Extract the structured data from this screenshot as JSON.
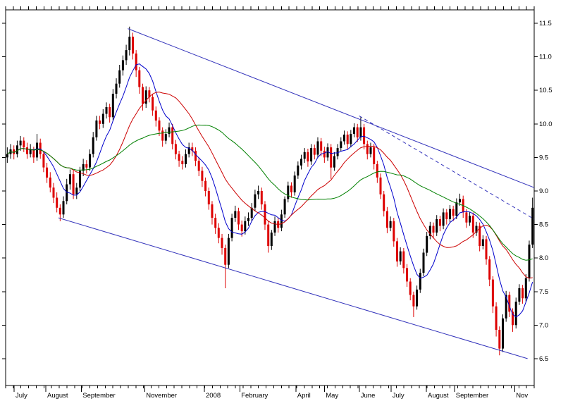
{
  "chart_data": {
    "type": "candlestick",
    "title": "",
    "ylim": [
      6.1,
      11.7
    ],
    "x_range": [
      0,
      160
    ],
    "grid": false,
    "legend": "none",
    "colors": {
      "up": "#000000",
      "down": "#dd0000",
      "frame": "#000000",
      "background": "#ffffff",
      "trend": "#3333bb"
    },
    "price_axis": {
      "side": "right",
      "ticks": [
        11.5,
        11.0,
        10.5,
        10.0,
        9.5,
        9.0,
        8.5,
        8.0,
        7.5,
        7.0,
        6.5
      ],
      "decimals": 1
    },
    "time_axis": {
      "minor_ticks": 69,
      "labels": [
        {
          "text": "July",
          "pos": 0.016
        },
        {
          "text": "August",
          "pos": 0.076
        },
        {
          "text": "September",
          "pos": 0.143
        },
        {
          "text": "November",
          "pos": 0.263
        },
        {
          "text": "2008",
          "pos": 0.376
        },
        {
          "text": "February",
          "pos": 0.443
        },
        {
          "text": "April",
          "pos": 0.549
        },
        {
          "text": "May",
          "pos": 0.603
        },
        {
          "text": "June",
          "pos": 0.669
        },
        {
          "text": "July",
          "pos": 0.729
        },
        {
          "text": "August",
          "pos": 0.796
        },
        {
          "text": "September",
          "pos": 0.849
        },
        {
          "text": "Nov",
          "pos": 0.963
        }
      ]
    },
    "moving_averages": [
      {
        "name": "fast-blue",
        "period": 8,
        "color": "#0000cc"
      },
      {
        "name": "medium-red",
        "period": 20,
        "color": "#cc0000"
      },
      {
        "name": "slow-green",
        "period": 40,
        "color": "#008000"
      }
    ],
    "trend_lines": [
      {
        "name": "upper-channel",
        "x1": 37,
        "y1": 11.42,
        "x2": 160,
        "y2": 9.05,
        "color": "#3333bb",
        "dashed": false
      },
      {
        "name": "lower-channel",
        "x1": 16,
        "y1": 8.6,
        "x2": 158,
        "y2": 6.5,
        "color": "#3333bb",
        "dashed": false
      },
      {
        "name": "inner-resistance",
        "x1": 107,
        "y1": 10.12,
        "x2": 160,
        "y2": 8.58,
        "color": "#3333bb",
        "dashed": true
      }
    ],
    "candles": [
      [
        9.5,
        9.65,
        9.42,
        9.55
      ],
      [
        9.55,
        9.7,
        9.48,
        9.62
      ],
      [
        9.62,
        9.68,
        9.47,
        9.55
      ],
      [
        9.55,
        9.75,
        9.5,
        9.68
      ],
      [
        9.68,
        9.82,
        9.6,
        9.75
      ],
      [
        9.75,
        9.8,
        9.58,
        9.65
      ],
      [
        9.65,
        9.72,
        9.48,
        9.55
      ],
      [
        9.55,
        9.7,
        9.5,
        9.62
      ],
      [
        9.62,
        9.66,
        9.42,
        9.5
      ],
      [
        9.5,
        9.85,
        9.45,
        9.72
      ],
      [
        9.72,
        9.78,
        9.48,
        9.55
      ],
      [
        9.55,
        9.6,
        9.28,
        9.35
      ],
      [
        9.35,
        9.42,
        9.12,
        9.2
      ],
      [
        9.2,
        9.28,
        8.98,
        9.05
      ],
      [
        9.05,
        9.12,
        8.82,
        8.9
      ],
      [
        8.9,
        8.98,
        8.68,
        8.75
      ],
      [
        8.75,
        8.8,
        8.55,
        8.65
      ],
      [
        8.65,
        8.92,
        8.6,
        8.85
      ],
      [
        8.85,
        9.18,
        8.8,
        9.1
      ],
      [
        9.1,
        9.32,
        9.02,
        9.25
      ],
      [
        9.25,
        9.3,
        8.88,
        8.95
      ],
      [
        8.95,
        9.12,
        8.88,
        9.05
      ],
      [
        9.05,
        9.36,
        9.0,
        9.3
      ],
      [
        9.3,
        9.48,
        9.22,
        9.4
      ],
      [
        9.4,
        9.46,
        9.26,
        9.35
      ],
      [
        9.35,
        9.62,
        9.3,
        9.55
      ],
      [
        9.55,
        9.88,
        9.5,
        9.8
      ],
      [
        9.8,
        10.12,
        9.75,
        10.05
      ],
      [
        10.05,
        10.12,
        9.92,
        10.0
      ],
      [
        10.0,
        10.22,
        9.94,
        10.15
      ],
      [
        10.15,
        10.32,
        10.08,
        10.25
      ],
      [
        10.25,
        10.3,
        10.02,
        10.1
      ],
      [
        10.1,
        10.52,
        10.05,
        10.45
      ],
      [
        10.45,
        10.68,
        10.38,
        10.6
      ],
      [
        10.6,
        10.88,
        10.54,
        10.8
      ],
      [
        10.8,
        11.02,
        10.72,
        10.95
      ],
      [
        10.95,
        11.18,
        10.88,
        11.1
      ],
      [
        11.1,
        11.45,
        11.02,
        11.3
      ],
      [
        11.3,
        11.36,
        10.96,
        11.05
      ],
      [
        11.05,
        11.1,
        10.7,
        10.8
      ],
      [
        10.8,
        10.85,
        10.45,
        10.55
      ],
      [
        10.55,
        10.6,
        10.2,
        10.3
      ],
      [
        10.3,
        10.56,
        10.24,
        10.5
      ],
      [
        10.5,
        10.55,
        10.32,
        10.4
      ],
      [
        10.4,
        10.45,
        10.12,
        10.2
      ],
      [
        10.2,
        10.26,
        9.96,
        10.05
      ],
      [
        10.05,
        10.1,
        9.82,
        9.9
      ],
      [
        9.9,
        9.95,
        9.66,
        9.75
      ],
      [
        9.75,
        9.92,
        9.7,
        9.85
      ],
      [
        9.85,
        10.02,
        9.8,
        9.95
      ],
      [
        9.95,
        10.0,
        9.62,
        9.7
      ],
      [
        9.7,
        9.76,
        9.47,
        9.55
      ],
      [
        9.55,
        9.6,
        9.36,
        9.45
      ],
      [
        9.45,
        9.52,
        9.32,
        9.4
      ],
      [
        9.4,
        9.62,
        9.35,
        9.55
      ],
      [
        9.55,
        9.72,
        9.5,
        9.65
      ],
      [
        9.65,
        9.72,
        9.52,
        9.6
      ],
      [
        9.6,
        9.65,
        9.37,
        9.45
      ],
      [
        9.45,
        9.5,
        9.22,
        9.3
      ],
      [
        9.3,
        9.36,
        9.06,
        9.15
      ],
      [
        9.15,
        9.2,
        8.92,
        9.0
      ],
      [
        9.0,
        9.05,
        8.72,
        8.8
      ],
      [
        8.8,
        8.85,
        8.5,
        8.6
      ],
      [
        8.6,
        8.66,
        8.36,
        8.45
      ],
      [
        8.45,
        8.52,
        8.22,
        8.3
      ],
      [
        8.3,
        8.36,
        8.05,
        8.15
      ],
      [
        8.15,
        8.2,
        7.55,
        7.9
      ],
      [
        7.9,
        8.36,
        7.85,
        8.3
      ],
      [
        8.3,
        8.66,
        8.25,
        8.6
      ],
      [
        8.6,
        8.78,
        8.54,
        8.7
      ],
      [
        8.7,
        8.75,
        8.42,
        8.5
      ],
      [
        8.5,
        8.56,
        8.32,
        8.4
      ],
      [
        8.4,
        8.62,
        8.35,
        8.55
      ],
      [
        8.55,
        8.68,
        8.48,
        8.6
      ],
      [
        8.6,
        8.82,
        8.55,
        8.75
      ],
      [
        8.75,
        9.02,
        8.7,
        8.95
      ],
      [
        8.95,
        9.08,
        8.88,
        9.0
      ],
      [
        9.0,
        9.05,
        8.72,
        8.8
      ],
      [
        8.8,
        8.85,
        8.42,
        8.5
      ],
      [
        8.5,
        8.55,
        8.08,
        8.18
      ],
      [
        8.18,
        8.42,
        8.12,
        8.38
      ],
      [
        8.38,
        8.62,
        8.33,
        8.55
      ],
      [
        8.55,
        8.6,
        8.38,
        8.45
      ],
      [
        8.45,
        8.72,
        8.4,
        8.65
      ],
      [
        8.65,
        8.92,
        8.6,
        8.88
      ],
      [
        8.88,
        9.14,
        8.83,
        9.08
      ],
      [
        9.08,
        9.13,
        8.9,
        8.98
      ],
      [
        8.98,
        9.29,
        8.93,
        9.23
      ],
      [
        9.23,
        9.44,
        9.18,
        9.38
      ],
      [
        9.38,
        9.54,
        9.32,
        9.48
      ],
      [
        9.48,
        9.64,
        9.42,
        9.58
      ],
      [
        9.58,
        9.63,
        9.36,
        9.44
      ],
      [
        9.44,
        9.7,
        9.39,
        9.64
      ],
      [
        9.64,
        9.69,
        9.47,
        9.54
      ],
      [
        9.54,
        9.8,
        9.49,
        9.74
      ],
      [
        9.74,
        9.79,
        9.52,
        9.6
      ],
      [
        9.6,
        9.66,
        9.42,
        9.5
      ],
      [
        9.5,
        9.71,
        9.45,
        9.65
      ],
      [
        9.65,
        9.7,
        9.18,
        9.35
      ],
      [
        9.35,
        9.58,
        9.3,
        9.52
      ],
      [
        9.52,
        9.7,
        9.47,
        9.64
      ],
      [
        9.64,
        9.8,
        9.59,
        9.74
      ],
      [
        9.74,
        9.9,
        9.69,
        9.84
      ],
      [
        9.84,
        9.89,
        9.62,
        9.7
      ],
      [
        9.7,
        9.91,
        9.65,
        9.85
      ],
      [
        9.85,
        10.01,
        9.8,
        9.95
      ],
      [
        9.95,
        10.0,
        9.73,
        9.8
      ],
      [
        9.8,
        10.1,
        9.75,
        9.95
      ],
      [
        9.95,
        10.0,
        9.62,
        9.7
      ],
      [
        9.7,
        9.75,
        9.47,
        9.55
      ],
      [
        9.55,
        9.72,
        9.5,
        9.65
      ],
      [
        9.65,
        9.7,
        9.32,
        9.4
      ],
      [
        9.4,
        9.45,
        9.12,
        9.2
      ],
      [
        9.2,
        9.26,
        8.88,
        8.95
      ],
      [
        8.95,
        9.0,
        8.62,
        8.7
      ],
      [
        8.7,
        8.76,
        8.37,
        8.45
      ],
      [
        8.45,
        8.62,
        8.4,
        8.55
      ],
      [
        8.55,
        8.6,
        8.17,
        8.25
      ],
      [
        8.25,
        8.3,
        7.87,
        7.95
      ],
      [
        7.95,
        8.16,
        7.9,
        8.1
      ],
      [
        8.1,
        8.15,
        7.77,
        7.85
      ],
      [
        7.85,
        7.91,
        7.57,
        7.65
      ],
      [
        7.65,
        7.7,
        7.37,
        7.45
      ],
      [
        7.45,
        7.5,
        7.12,
        7.28
      ],
      [
        7.28,
        7.59,
        7.23,
        7.53
      ],
      [
        7.53,
        7.84,
        7.48,
        7.78
      ],
      [
        7.78,
        8.14,
        7.73,
        8.08
      ],
      [
        8.08,
        8.39,
        8.03,
        8.33
      ],
      [
        8.33,
        8.54,
        8.28,
        8.48
      ],
      [
        8.48,
        8.53,
        8.3,
        8.38
      ],
      [
        8.38,
        8.64,
        8.33,
        8.58
      ],
      [
        8.58,
        8.63,
        8.4,
        8.48
      ],
      [
        8.48,
        8.74,
        8.43,
        8.68
      ],
      [
        8.68,
        8.73,
        8.5,
        8.58
      ],
      [
        8.58,
        8.79,
        8.53,
        8.73
      ],
      [
        8.73,
        8.78,
        8.55,
        8.63
      ],
      [
        8.63,
        8.89,
        8.58,
        8.83
      ],
      [
        8.83,
        8.96,
        8.78,
        8.88
      ],
      [
        8.88,
        8.93,
        8.6,
        8.68
      ],
      [
        8.68,
        8.73,
        8.45,
        8.53
      ],
      [
        8.53,
        8.69,
        8.48,
        8.63
      ],
      [
        8.63,
        8.68,
        8.3,
        8.38
      ],
      [
        8.38,
        8.54,
        8.33,
        8.48
      ],
      [
        8.48,
        8.53,
        8.1,
        8.18
      ],
      [
        8.18,
        8.34,
        8.13,
        8.28
      ],
      [
        8.28,
        8.33,
        7.9,
        7.98
      ],
      [
        7.98,
        8.03,
        7.58,
        7.68
      ],
      [
        7.68,
        7.73,
        7.18,
        7.28
      ],
      [
        7.28,
        7.34,
        6.83,
        6.93
      ],
      [
        6.93,
        6.98,
        6.55,
        6.65
      ],
      [
        6.65,
        7.16,
        6.6,
        7.1
      ],
      [
        7.1,
        7.51,
        7.05,
        7.45
      ],
      [
        7.45,
        7.5,
        7.12,
        7.2
      ],
      [
        7.2,
        7.25,
        6.9,
        7.0
      ],
      [
        7.0,
        7.41,
        6.95,
        7.35
      ],
      [
        7.35,
        7.61,
        7.3,
        7.55
      ],
      [
        7.55,
        7.6,
        7.32,
        7.4
      ],
      [
        7.4,
        7.76,
        7.35,
        7.7
      ],
      [
        7.7,
        8.26,
        7.65,
        8.2
      ],
      [
        8.2,
        8.9,
        8.15,
        8.75
      ]
    ]
  }
}
